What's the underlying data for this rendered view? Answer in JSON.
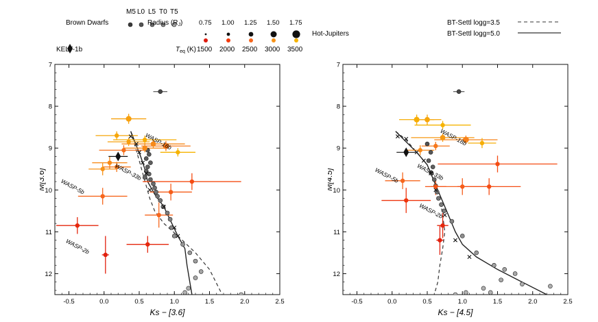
{
  "legend": {
    "brown_dwarfs_label": "Brown Dwarfs",
    "spectral_types": [
      "M5",
      "L0",
      "L5",
      "T0",
      "T5"
    ],
    "kelt_label": "KELT-1b",
    "radius_label": "Radius (R",
    "radius_sub": "J",
    "radius_close": ")",
    "radius_values": [
      "0.75",
      "1.00",
      "1.25",
      "1.50",
      "1.75"
    ],
    "hot_jupiters_label": "Hot-Jupiters",
    "teq_label": "T",
    "teq_sub": "eq",
    "teq_unit": " (K)",
    "teq_values": [
      "1500",
      "2000",
      "2500",
      "3000",
      "3500"
    ],
    "teq_colors": [
      "#dd1a0e",
      "#f23a0c",
      "#f6661d",
      "#f79318",
      "#f6b300"
    ],
    "model_dashed_label": "BT-Settl logg=3.5",
    "model_solid_label": "BT-Settl logg=5.0"
  },
  "chart_data": [
    {
      "type": "scatter",
      "title": "",
      "xlabel": "Ks − [3.6]",
      "ylabel": "M[3.6]",
      "xlim": [
        -0.7,
        2.5
      ],
      "ylim": [
        12.5,
        7.0
      ],
      "xticks": [
        "-0.5",
        "0.0",
        "0.5",
        "1.0",
        "1.5",
        "2.0",
        "2.5"
      ],
      "yticks": [
        "7",
        "8",
        "9",
        "10",
        "11",
        "12"
      ],
      "brown_dwarfs": [
        {
          "x": 0.62,
          "y": 9.05
        },
        {
          "x": 0.64,
          "y": 9.15
        },
        {
          "x": 0.6,
          "y": 9.25
        },
        {
          "x": 0.66,
          "y": 9.35
        },
        {
          "x": 0.62,
          "y": 9.45
        },
        {
          "x": 0.6,
          "y": 9.55
        },
        {
          "x": 0.64,
          "y": 9.62
        },
        {
          "x": 0.66,
          "y": 9.75
        },
        {
          "x": 0.7,
          "y": 9.85
        },
        {
          "x": 0.72,
          "y": 9.95
        },
        {
          "x": 0.74,
          "y": 10.05
        },
        {
          "x": 0.76,
          "y": 10.15
        },
        {
          "x": 0.8,
          "y": 10.25
        },
        {
          "x": 0.84,
          "y": 10.4
        },
        {
          "x": 0.9,
          "y": 10.55
        },
        {
          "x": 0.94,
          "y": 10.7
        },
        {
          "x": 0.96,
          "y": 10.9
        },
        {
          "x": 1.0,
          "y": 11.1
        },
        {
          "x": 1.12,
          "y": 11.3
        },
        {
          "x": 1.22,
          "y": 11.5
        },
        {
          "x": 1.3,
          "y": 11.7
        },
        {
          "x": 1.38,
          "y": 11.95
        },
        {
          "x": 1.3,
          "y": 12.1
        },
        {
          "x": 1.2,
          "y": 12.35
        },
        {
          "x": 1.15,
          "y": 12.45
        },
        {
          "x": 1.95,
          "y": 12.5
        },
        {
          "x": 0.8,
          "y": 7.65
        },
        {
          "x": 0.58,
          "y": 9.7
        }
      ],
      "field_dwarfs_x": [
        {
          "x": 0.38,
          "y": 8.72
        },
        {
          "x": 0.46,
          "y": 8.9
        },
        {
          "x": 0.5,
          "y": 9.1
        },
        {
          "x": 0.55,
          "y": 9.35
        },
        {
          "x": 0.6,
          "y": 9.6
        },
        {
          "x": 0.65,
          "y": 10.0
        },
        {
          "x": 0.85,
          "y": 10.4
        },
        {
          "x": 1.0,
          "y": 10.9
        },
        {
          "x": 1.05,
          "y": 11.1
        }
      ],
      "hot_jupiters": [
        {
          "x": 0.35,
          "y": 8.3,
          "xerr": 0.25,
          "yerr": 0.12,
          "teq": 3200,
          "size": 1.35
        },
        {
          "x": 0.18,
          "y": 8.7,
          "xerr": 0.3,
          "yerr": 0.1,
          "teq": 3300,
          "size": 1.0
        },
        {
          "x": 0.35,
          "y": 8.85,
          "xerr": 0.3,
          "yerr": 0.1,
          "teq": 3200,
          "size": 1.0
        },
        {
          "x": 0.58,
          "y": 8.8,
          "xerr": 0.45,
          "yerr": 0.1,
          "teq": 3400,
          "size": 1.0
        },
        {
          "x": 0.7,
          "y": 8.9,
          "xerr": 0.45,
          "yerr": 0.1,
          "teq": 2900,
          "size": 1.25
        },
        {
          "x": 0.88,
          "y": 8.95,
          "xerr": 0.35,
          "yerr": 0.12,
          "teq": 2700,
          "size": 1.45
        },
        {
          "x": 0.58,
          "y": 9.0,
          "xerr": 0.3,
          "yerr": 0.1,
          "teq": 2900,
          "size": 1.25
        },
        {
          "x": 0.28,
          "y": 9.05,
          "xerr": 0.35,
          "yerr": 0.12,
          "teq": 2600,
          "size": 1.0
        },
        {
          "x": 1.05,
          "y": 9.1,
          "xerr": 0.25,
          "yerr": 0.1,
          "teq": 3500,
          "size": 1.0
        },
        {
          "x": 0.08,
          "y": 9.35,
          "xerr": 0.25,
          "yerr": 0.15,
          "teq": 2900,
          "size": 1.0
        },
        {
          "x": -0.02,
          "y": 9.5,
          "xerr": 0.2,
          "yerr": 0.15,
          "teq": 3000,
          "size": 1.0
        },
        {
          "x": 0.18,
          "y": 9.45,
          "xerr": 0.2,
          "yerr": 0.12,
          "teq": 2700,
          "size": 1.0
        },
        {
          "x": 1.25,
          "y": 9.8,
          "xerr": 0.7,
          "yerr": 0.2,
          "teq": 2200,
          "size": 1.0
        },
        {
          "x": 0.95,
          "y": 10.05,
          "xerr": 0.3,
          "yerr": 0.2,
          "teq": 2400,
          "size": 1.0
        },
        {
          "x": -0.02,
          "y": 10.15,
          "xerr": 0.35,
          "yerr": 0.2,
          "teq": 2500,
          "size": 1.0
        },
        {
          "x": 0.78,
          "y": 10.6,
          "xerr": 0.2,
          "yerr": 0.3,
          "teq": 2500,
          "size": 1.0
        },
        {
          "x": -0.38,
          "y": 10.85,
          "xerr": 0.3,
          "yerr": 0.2,
          "teq": 1700,
          "size": 1.0
        },
        {
          "x": 0.62,
          "y": 11.3,
          "xerr": 0.3,
          "yerr": 0.2,
          "teq": 1700,
          "size": 1.0
        },
        {
          "x": 0.02,
          "y": 11.55,
          "xerr": 0.05,
          "yerr": 0.45,
          "teq": 1600,
          "size": 1.0
        }
      ],
      "kelt_1b": {
        "x": 0.2,
        "y": 9.2
      },
      "brown_dwarf_error": {
        "x": 0.8,
        "y": 7.65,
        "xerr": 0.1,
        "yerr": 0.05
      },
      "model_dashed": [
        {
          "x": 0.38,
          "y": 8.6
        },
        {
          "x": 0.45,
          "y": 9.0
        },
        {
          "x": 0.5,
          "y": 9.3
        },
        {
          "x": 0.55,
          "y": 9.6
        },
        {
          "x": 0.6,
          "y": 9.9
        },
        {
          "x": 0.65,
          "y": 10.2
        },
        {
          "x": 0.72,
          "y": 10.5
        },
        {
          "x": 0.85,
          "y": 10.8
        },
        {
          "x": 1.05,
          "y": 11.1
        },
        {
          "x": 1.3,
          "y": 11.5
        },
        {
          "x": 1.5,
          "y": 11.9
        },
        {
          "x": 1.65,
          "y": 12.4
        },
        {
          "x": 1.68,
          "y": 12.5
        }
      ],
      "model_solid": [
        {
          "x": 0.38,
          "y": 8.6
        },
        {
          "x": 0.45,
          "y": 8.9
        },
        {
          "x": 0.52,
          "y": 9.2
        },
        {
          "x": 0.58,
          "y": 9.5
        },
        {
          "x": 0.62,
          "y": 9.8
        },
        {
          "x": 0.72,
          "y": 10.1
        },
        {
          "x": 0.85,
          "y": 10.4
        },
        {
          "x": 0.95,
          "y": 10.75
        },
        {
          "x": 1.05,
          "y": 11.1
        },
        {
          "x": 1.15,
          "y": 11.4
        },
        {
          "x": 1.18,
          "y": 11.8
        },
        {
          "x": 1.22,
          "y": 12.2
        },
        {
          "x": 1.25,
          "y": 12.5
        }
      ],
      "annotations": [
        {
          "text": "WASP-18b",
          "x": 0.58,
          "y": 8.72,
          "angle": 28
        },
        {
          "text": "WASP-33b",
          "x": 0.15,
          "y": 9.45,
          "angle": 28
        },
        {
          "text": "WASP-5b",
          "x": -0.62,
          "y": 9.82,
          "angle": 28
        },
        {
          "text": "WASP-2b",
          "x": -0.55,
          "y": 11.25,
          "angle": 28
        }
      ]
    },
    {
      "type": "scatter",
      "title": "",
      "xlabel": "Ks − [4.5]",
      "ylabel": "M[4.5]",
      "xlim": [
        -0.7,
        2.5
      ],
      "ylim": [
        12.5,
        7.0
      ],
      "xticks": [
        "-0.5",
        "0.0",
        "0.5",
        "1.0",
        "1.5",
        "2.0",
        "2.5"
      ],
      "yticks": [
        "7",
        "8",
        "9",
        "10",
        "11",
        "12"
      ],
      "brown_dwarfs": [
        {
          "x": 0.5,
          "y": 8.9
        },
        {
          "x": 0.55,
          "y": 9.1
        },
        {
          "x": 0.52,
          "y": 9.3
        },
        {
          "x": 0.58,
          "y": 9.45
        },
        {
          "x": 0.56,
          "y": 9.6
        },
        {
          "x": 0.6,
          "y": 9.75
        },
        {
          "x": 0.62,
          "y": 9.9
        },
        {
          "x": 0.64,
          "y": 10.05
        },
        {
          "x": 0.66,
          "y": 10.2
        },
        {
          "x": 0.7,
          "y": 10.35
        },
        {
          "x": 0.74,
          "y": 10.5
        },
        {
          "x": 0.85,
          "y": 10.75
        },
        {
          "x": 1.0,
          "y": 11.1
        },
        {
          "x": 1.2,
          "y": 11.5
        },
        {
          "x": 1.45,
          "y": 11.8
        },
        {
          "x": 1.6,
          "y": 11.9
        },
        {
          "x": 1.75,
          "y": 12.0
        },
        {
          "x": 1.55,
          "y": 12.15
        },
        {
          "x": 1.85,
          "y": 12.25
        },
        {
          "x": 2.25,
          "y": 12.3
        },
        {
          "x": 1.3,
          "y": 12.35
        },
        {
          "x": 1.4,
          "y": 12.45
        },
        {
          "x": 1.05,
          "y": 12.45
        },
        {
          "x": 0.9,
          "y": 12.5
        },
        {
          "x": 0.95,
          "y": 7.65
        }
      ],
      "field_dwarfs_x": [
        {
          "x": 0.08,
          "y": 8.72
        },
        {
          "x": 0.2,
          "y": 8.78
        },
        {
          "x": 0.35,
          "y": 9.1
        },
        {
          "x": 0.45,
          "y": 9.3
        },
        {
          "x": 0.55,
          "y": 9.6
        },
        {
          "x": 0.62,
          "y": 10.0
        },
        {
          "x": 0.75,
          "y": 10.6
        },
        {
          "x": 0.9,
          "y": 11.2
        },
        {
          "x": 1.1,
          "y": 11.6
        }
      ],
      "hot_jupiters": [
        {
          "x": 0.35,
          "y": 8.32,
          "xerr": 0.25,
          "yerr": 0.12,
          "teq": 3400,
          "size": 1.35
        },
        {
          "x": 0.5,
          "y": 8.32,
          "xerr": 0.2,
          "yerr": 0.12,
          "teq": 3300,
          "size": 1.25
        },
        {
          "x": 0.72,
          "y": 8.45,
          "xerr": 0.4,
          "yerr": 0.1,
          "teq": 3500,
          "size": 1.0
        },
        {
          "x": 0.72,
          "y": 8.75,
          "xerr": 0.45,
          "yerr": 0.1,
          "teq": 3100,
          "size": 1.25
        },
        {
          "x": 1.05,
          "y": 8.8,
          "xerr": 0.45,
          "yerr": 0.1,
          "teq": 2800,
          "size": 1.45
        },
        {
          "x": 1.28,
          "y": 8.88,
          "xerr": 0.2,
          "yerr": 0.12,
          "teq": 3400,
          "size": 1.0
        },
        {
          "x": 0.62,
          "y": 8.95,
          "xerr": 0.2,
          "yerr": 0.1,
          "teq": 2700,
          "size": 1.0
        },
        {
          "x": 0.4,
          "y": 9.05,
          "xerr": 0.2,
          "yerr": 0.12,
          "teq": 2900,
          "size": 1.0
        },
        {
          "x": 1.5,
          "y": 9.38,
          "xerr": 0.85,
          "yerr": 0.2,
          "teq": 2200,
          "size": 1.0
        },
        {
          "x": 0.15,
          "y": 9.78,
          "xerr": 0.25,
          "yerr": 0.2,
          "teq": 2500,
          "size": 1.0
        },
        {
          "x": 1.0,
          "y": 9.92,
          "xerr": 0.45,
          "yerr": 0.2,
          "teq": 2400,
          "size": 1.0
        },
        {
          "x": 0.62,
          "y": 9.92,
          "xerr": 0.15,
          "yerr": 0.2,
          "teq": 2300,
          "size": 1.0
        },
        {
          "x": 1.38,
          "y": 9.92,
          "xerr": 0.45,
          "yerr": 0.2,
          "teq": 2200,
          "size": 1.0
        },
        {
          "x": 0.2,
          "y": 10.25,
          "xerr": 0.35,
          "yerr": 0.3,
          "teq": 1900,
          "size": 1.0
        },
        {
          "x": 0.72,
          "y": 10.85,
          "xerr": 0.08,
          "yerr": 0.3,
          "teq": 1700,
          "size": 1.0
        },
        {
          "x": 0.68,
          "y": 11.2,
          "xerr": 0.05,
          "yerr": 0.35,
          "teq": 1600,
          "size": 1.0
        }
      ],
      "kelt_1b": {
        "x": 0.2,
        "y": 9.1
      },
      "brown_dwarf_error": {
        "x": 0.95,
        "y": 7.65,
        "xerr": 0.08,
        "yerr": 0.05
      },
      "model_dashed": [
        {
          "x": 0.05,
          "y": 8.6
        },
        {
          "x": 0.2,
          "y": 8.8
        },
        {
          "x": 0.35,
          "y": 9.1
        },
        {
          "x": 0.5,
          "y": 9.4
        },
        {
          "x": 0.6,
          "y": 9.8
        },
        {
          "x": 0.68,
          "y": 10.2
        },
        {
          "x": 0.72,
          "y": 10.6
        },
        {
          "x": 0.75,
          "y": 11.0
        },
        {
          "x": 0.72,
          "y": 11.4
        },
        {
          "x": 0.68,
          "y": 11.8
        },
        {
          "x": 0.65,
          "y": 12.2
        },
        {
          "x": 0.6,
          "y": 12.5
        }
      ],
      "model_solid": [
        {
          "x": 0.05,
          "y": 8.6
        },
        {
          "x": 0.2,
          "y": 8.85
        },
        {
          "x": 0.35,
          "y": 9.1
        },
        {
          "x": 0.5,
          "y": 9.4
        },
        {
          "x": 0.6,
          "y": 9.8
        },
        {
          "x": 0.7,
          "y": 10.2
        },
        {
          "x": 0.8,
          "y": 10.6
        },
        {
          "x": 0.9,
          "y": 11.0
        },
        {
          "x": 1.0,
          "y": 11.3
        },
        {
          "x": 1.2,
          "y": 11.6
        },
        {
          "x": 1.5,
          "y": 11.9
        },
        {
          "x": 1.85,
          "y": 12.2
        },
        {
          "x": 2.2,
          "y": 12.5
        }
      ],
      "annotations": [
        {
          "text": "WASP-18b",
          "x": 0.68,
          "y": 8.62,
          "angle": 28
        },
        {
          "text": "WASP-33b",
          "x": 0.35,
          "y": 9.45,
          "angle": 28
        },
        {
          "text": "WASP-5b",
          "x": -0.25,
          "y": 9.55,
          "angle": 28
        },
        {
          "text": "WASP-2b",
          "x": 0.38,
          "y": 10.4,
          "angle": 28
        }
      ]
    }
  ]
}
